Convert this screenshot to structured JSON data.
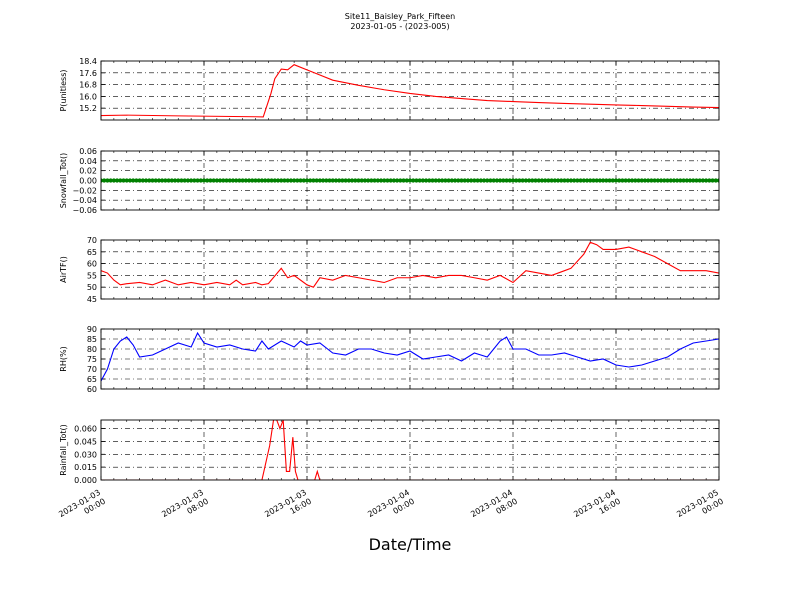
{
  "figure": {
    "title_line1": "Site11_Baisley_Park_Fifteen",
    "title_line2": "2023-01-05 - (2023-005)",
    "xlabel": "Date/Time",
    "x_ticks": [
      {
        "t": 0,
        "line1": "2023-01-03",
        "line2": "00:00"
      },
      {
        "t": 8,
        "line1": "2023-01-03",
        "line2": "08:00"
      },
      {
        "t": 16,
        "line1": "2023-01-03",
        "line2": "16:00"
      },
      {
        "t": 24,
        "line1": "2023-01-04",
        "line2": "00:00"
      },
      {
        "t": 32,
        "line1": "2023-01-04",
        "line2": "08:00"
      },
      {
        "t": 40,
        "line1": "2023-01-04",
        "line2": "16:00"
      },
      {
        "t": 48,
        "line1": "2023-01-05",
        "line2": "00:00"
      }
    ],
    "x_range_hours": [
      0,
      48
    ],
    "grid": true
  },
  "chart_data": [
    {
      "type": "line",
      "ylabel": "P(unitless)",
      "ylim": [
        14.4,
        18.4
      ],
      "yticks": [
        15.2,
        16.0,
        16.8,
        17.6,
        18.4
      ],
      "ytick_labels": [
        "15.2",
        "16.0",
        "16.8",
        "17.6",
        "18.4"
      ],
      "color": "#ff0000",
      "marker": "line",
      "x_hours": [
        0,
        2,
        6,
        12,
        12.6,
        13.2,
        13.5,
        14,
        14.5,
        15,
        16,
        17,
        18,
        20,
        22,
        24,
        26,
        28,
        30,
        32,
        34,
        36,
        38,
        40,
        42,
        44,
        46,
        48
      ],
      "values": [
        14.7,
        14.73,
        14.68,
        14.62,
        14.61,
        16.2,
        17.2,
        17.85,
        17.8,
        18.15,
        17.8,
        17.45,
        17.1,
        16.75,
        16.45,
        16.2,
        16.0,
        15.85,
        15.72,
        15.65,
        15.58,
        15.52,
        15.47,
        15.42,
        15.38,
        15.33,
        15.28,
        15.24
      ]
    },
    {
      "type": "line",
      "ylabel": "Snowfall_Tot()",
      "ylim": [
        -0.06,
        0.06
      ],
      "yticks": [
        -0.06,
        -0.04,
        -0.02,
        0.0,
        0.02,
        0.04,
        0.06
      ],
      "ytick_labels": [
        "−0.06",
        "−0.04",
        "−0.02",
        "0.00",
        "0.02",
        "0.04",
        "0.06"
      ],
      "color": "#008000",
      "marker": "dots",
      "x_hours": [
        0,
        48
      ],
      "values": [
        0.0,
        0.0
      ]
    },
    {
      "type": "line",
      "ylabel": "AirTF()",
      "ylim": [
        45,
        70
      ],
      "yticks": [
        45,
        50,
        55,
        60,
        65,
        70
      ],
      "ytick_labels": [
        "45",
        "50",
        "55",
        "60",
        "65",
        "70"
      ],
      "color": "#ff0000",
      "marker": "line",
      "x_hours": [
        0,
        0.5,
        1,
        1.5,
        2,
        3,
        4,
        5,
        6,
        7,
        8,
        9,
        10,
        10.5,
        11,
        12,
        12.5,
        13,
        14,
        14.5,
        15,
        16,
        16.5,
        17,
        18,
        19,
        20,
        21,
        22,
        23,
        24,
        25,
        26,
        27,
        28,
        29,
        30,
        31,
        32,
        33,
        34,
        35,
        36,
        36.5,
        37,
        37.5,
        38,
        38.5,
        39,
        40,
        41,
        42,
        42.5,
        43,
        44,
        45,
        46,
        47,
        48
      ],
      "values": [
        57,
        56,
        53,
        51,
        51.5,
        52,
        51,
        53,
        51,
        52,
        51,
        52,
        51,
        53,
        51,
        52,
        51,
        51.5,
        58,
        54,
        55,
        51,
        50,
        54,
        53,
        55,
        54,
        53,
        52,
        54,
        54,
        55,
        54,
        55,
        55,
        54,
        53,
        55,
        52,
        57,
        56,
        55,
        57,
        58,
        61,
        64,
        69,
        68,
        66,
        66,
        67,
        65,
        64,
        63,
        60,
        57,
        57,
        57,
        56
      ]
    },
    {
      "type": "line",
      "ylabel": "RH(%)",
      "ylim": [
        60,
        90
      ],
      "yticks": [
        60,
        65,
        70,
        75,
        80,
        85,
        90
      ],
      "ytick_labels": [
        "60",
        "65",
        "70",
        "75",
        "80",
        "85",
        "90"
      ],
      "color": "#0000ff",
      "marker": "line",
      "x_hours": [
        0,
        0.5,
        1,
        1.5,
        2,
        2.5,
        3,
        4,
        5,
        6,
        7,
        7.5,
        8,
        9,
        10,
        11,
        12,
        12.5,
        13,
        14,
        15,
        15.5,
        16,
        17,
        18,
        19,
        20,
        21,
        22,
        23,
        24,
        25,
        26,
        27,
        28,
        29,
        30,
        31,
        31.5,
        32,
        33,
        34,
        35,
        36,
        37,
        38,
        39,
        40,
        41,
        42,
        43,
        44,
        45,
        46,
        47,
        48
      ],
      "values": [
        64,
        70,
        80,
        84,
        86,
        82,
        76,
        77,
        80,
        83,
        81,
        88,
        83,
        81,
        82,
        80,
        79,
        84,
        80,
        84,
        81,
        84,
        82,
        83,
        78,
        77,
        80,
        80,
        78,
        77,
        79,
        75,
        76,
        77,
        74,
        78,
        76,
        84,
        86,
        80,
        80,
        77,
        77,
        78,
        76,
        74,
        75,
        72,
        71,
        72,
        74,
        76,
        80,
        83,
        84,
        85
      ]
    },
    {
      "type": "line",
      "ylabel": "Rainfall_Tot()",
      "ylim": [
        0.0,
        0.07
      ],
      "yticks": [
        0.0,
        0.015,
        0.03,
        0.045,
        0.06
      ],
      "ytick_labels": [
        "0.000",
        "0.015",
        "0.030",
        "0.045",
        "0.060"
      ],
      "color": "#ff0000",
      "marker": "line",
      "x_hours": [
        0,
        12.5,
        13.1,
        13.4,
        13.65,
        13.9,
        14.15,
        14.4,
        14.65,
        14.9,
        15.1,
        15.3,
        15.5,
        16.5,
        16.6,
        16.8,
        17,
        48
      ],
      "values": [
        0.0,
        0.0,
        0.04,
        0.07,
        0.07,
        0.06,
        0.07,
        0.01,
        0.01,
        0.05,
        0.01,
        0.0,
        0.0,
        0.0,
        0.0,
        0.01,
        0.0,
        0.0
      ]
    }
  ]
}
